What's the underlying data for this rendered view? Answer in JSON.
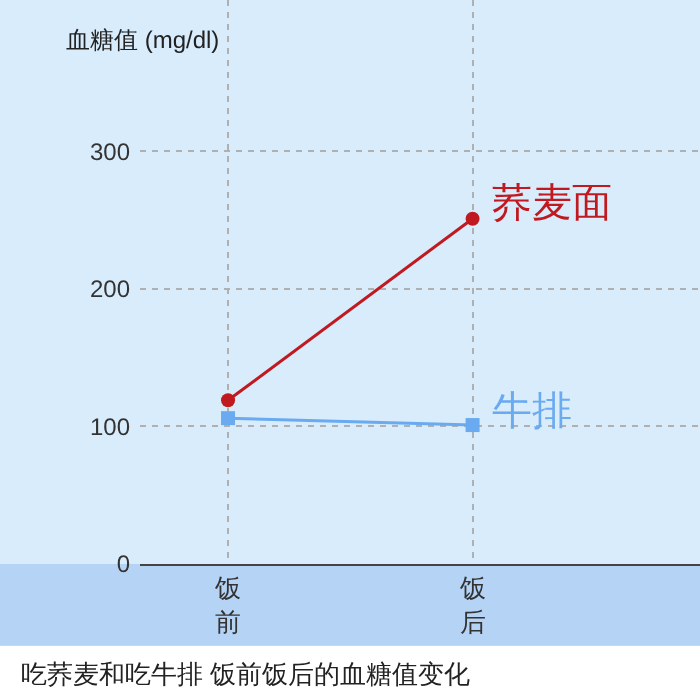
{
  "chart_data": {
    "type": "line",
    "title": "吃荞麦和吃牛排 饭前饭后的血糖值变化",
    "ylabel": "血糖值 (mg/dl)",
    "categories": [
      "饭前",
      "饭后"
    ],
    "series": [
      {
        "name": "荞麦面",
        "color": "#c0191f",
        "marker": "circle",
        "values": [
          119,
          251
        ]
      },
      {
        "name": "牛排",
        "color": "#6aaaf0",
        "marker": "square",
        "values": [
          106,
          101
        ]
      }
    ],
    "ylim": [
      0,
      410
    ],
    "yticks": [
      0,
      100,
      200,
      300
    ],
    "grid": true,
    "legend": false
  }
}
